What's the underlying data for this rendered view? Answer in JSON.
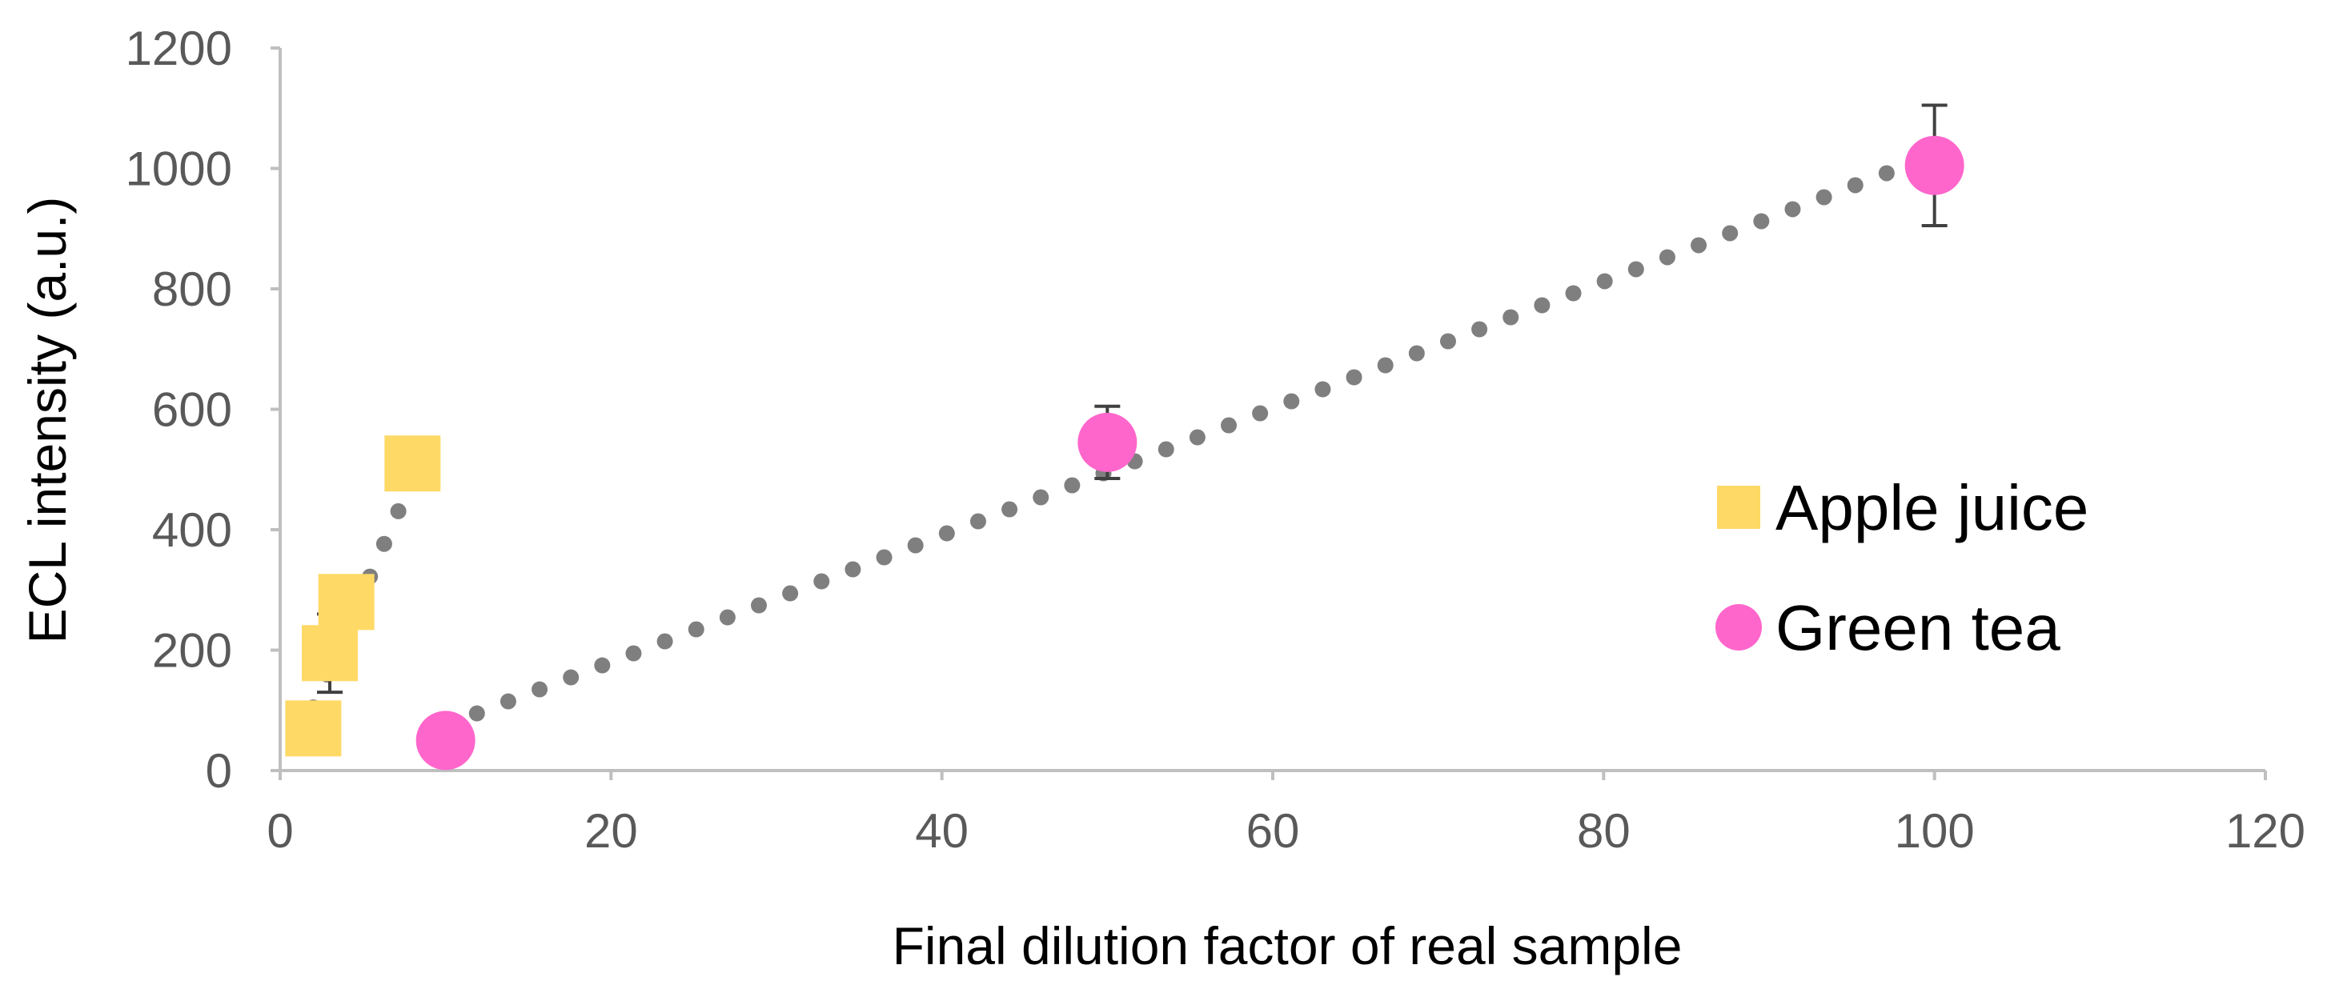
{
  "chart_data": {
    "type": "scatter",
    "title": "",
    "xlabel": "Final dilution factor of real sample",
    "ylabel": "ECL intensity (a.u.)",
    "xlim": [
      0,
      120
    ],
    "ylim": [
      0,
      1200
    ],
    "x_ticks": [
      "0",
      "20",
      "40",
      "60",
      "80",
      "100",
      "120"
    ],
    "y_ticks": [
      "0",
      "200",
      "400",
      "600",
      "800",
      "1000",
      "1200"
    ],
    "grid": false,
    "legend_position": "right",
    "series": [
      {
        "name": "Apple juice",
        "marker": "square",
        "color": "#FFD966",
        "points": [
          {
            "x": 2,
            "y": 70,
            "err": 0
          },
          {
            "x": 3,
            "y": 195,
            "err": 65
          },
          {
            "x": 4,
            "y": 280,
            "err": 25
          },
          {
            "x": 8,
            "y": 510,
            "err": 20
          }
        ],
        "trendline": {
          "style": "dotted",
          "color": "#7F7F7F",
          "x": [
            2,
            8
          ],
          "y": [
            105,
            485
          ]
        }
      },
      {
        "name": "Green tea",
        "marker": "circle",
        "color": "#FF66CC",
        "points": [
          {
            "x": 10,
            "y": 50,
            "err": 0
          },
          {
            "x": 50,
            "y": 545,
            "err": 60
          },
          {
            "x": 100,
            "y": 1005,
            "err": 100
          }
        ],
        "trendline": {
          "style": "dotted",
          "color": "#7F7F7F",
          "x": [
            10,
            99
          ],
          "y": [
            75,
            1012
          ]
        }
      }
    ]
  }
}
